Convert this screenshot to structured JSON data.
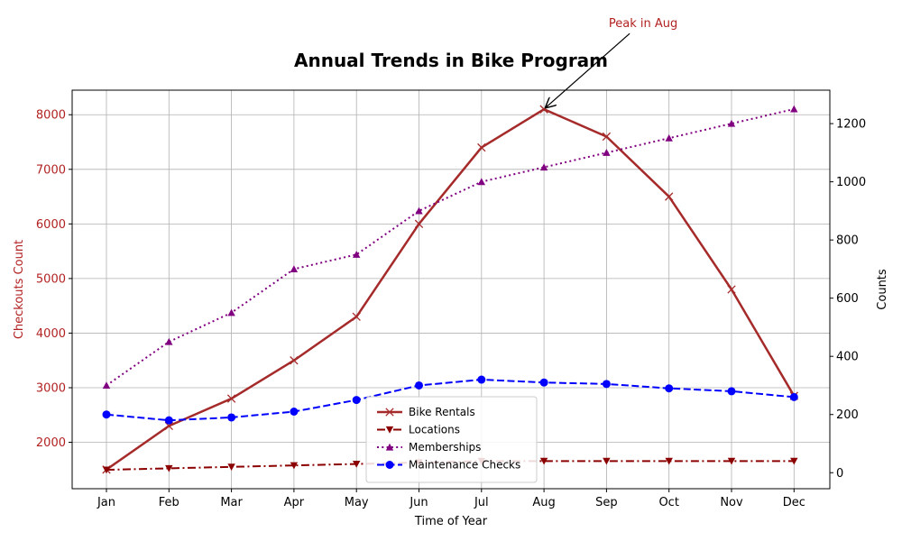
{
  "chart_data": {
    "type": "line",
    "title": "Annual Trends in Bike Program",
    "xlabel": "Time of Year",
    "ylabel_left": "Checkouts Count",
    "ylabel_right": "Counts",
    "categories": [
      "Jan",
      "Feb",
      "Mar",
      "Apr",
      "May",
      "Jun",
      "Jul",
      "Aug",
      "Sep",
      "Oct",
      "Nov",
      "Dec"
    ],
    "left_axis": {
      "ylim": [
        1150,
        8450
      ],
      "ticks": [
        2000,
        3000,
        4000,
        5000,
        6000,
        7000,
        8000
      ],
      "tick_color": "#b22222"
    },
    "right_axis": {
      "ylim": [
        -55,
        1315
      ],
      "ticks": [
        0,
        200,
        400,
        600,
        800,
        1000,
        1200
      ]
    },
    "grid": true,
    "legend_placement": "lower center",
    "series": [
      {
        "name": "Bike Rentals",
        "axis": "left",
        "color": "#a52a2a",
        "marker": "x",
        "linestyle": "solid",
        "values": [
          1500,
          2300,
          2800,
          3500,
          4300,
          6000,
          7400,
          8100,
          7600,
          6500,
          4800,
          2850
        ]
      },
      {
        "name": "Locations",
        "axis": "right",
        "color": "#8b0000",
        "marker": "triangle-down",
        "linestyle": "dashdot",
        "values": [
          10,
          15,
          20,
          25,
          30,
          35,
          40,
          40,
          40,
          40,
          40,
          40
        ]
      },
      {
        "name": "Memberships",
        "axis": "right",
        "color": "#800080",
        "marker": "triangle-up",
        "linestyle": "dotted",
        "values": [
          300,
          450,
          550,
          700,
          750,
          900,
          1000,
          1050,
          1100,
          1150,
          1200,
          1250
        ]
      },
      {
        "name": "Maintenance Checks",
        "axis": "right",
        "color": "#0000ff",
        "marker": "circle",
        "linestyle": "dashed",
        "values": [
          200,
          180,
          190,
          210,
          250,
          300,
          320,
          310,
          305,
          290,
          280,
          260
        ]
      }
    ],
    "annotation": {
      "text": "Peak in Aug",
      "x": "Aug",
      "y": 8100,
      "color": "#b22222"
    }
  }
}
